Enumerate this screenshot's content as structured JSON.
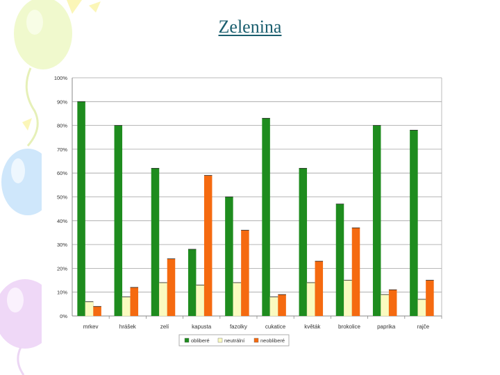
{
  "slide": {
    "title": "Zelenina"
  },
  "colors": {
    "title": "#1a5e6e",
    "obliberé": "#1e8c1e",
    "neutrální": "#fafac0",
    "neobliberé": "#f56a10",
    "grid": "#a0a0a0"
  },
  "chart_data": {
    "type": "bar",
    "title": "",
    "xlabel": "",
    "ylabel": "",
    "ylim": [
      0,
      100
    ],
    "yticks": [
      "0%",
      "10%",
      "20%",
      "30%",
      "40%",
      "50%",
      "60%",
      "70%",
      "80%",
      "90%",
      "100%"
    ],
    "categories": [
      "mrkev",
      "hrášek",
      "zelí",
      "kapusta",
      "fazolky",
      "cukatice",
      "květák",
      "brokolice",
      "paprika",
      "rajče"
    ],
    "series": [
      {
        "name": "obliberé",
        "values": [
          90,
          80,
          62,
          28,
          50,
          83,
          62,
          47,
          80,
          78
        ]
      },
      {
        "name": "neutrální",
        "values": [
          6,
          8,
          14,
          13,
          14,
          8,
          14,
          15,
          9,
          7
        ]
      },
      {
        "name": "neobliberé",
        "values": [
          4,
          12,
          24,
          59,
          36,
          9,
          23,
          37,
          11,
          15
        ]
      }
    ],
    "legend": {
      "position": "bottom"
    }
  }
}
